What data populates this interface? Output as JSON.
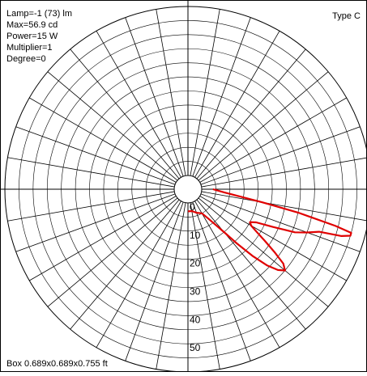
{
  "info": {
    "lamp": "Lamp=-1 (73) lm",
    "max": "Max=56.9 cd",
    "power": "Power=15 W",
    "multiplier": "Multiplier=1",
    "degree": "Degree=0"
  },
  "type_label": "Type C",
  "box_label": "Box 0.689x0.689x0.755 ft",
  "chart_data": {
    "type": "polar",
    "title": "",
    "radial_unit": "cd",
    "radial_max": 60,
    "ring_step": 5,
    "radial_ticks": [
      "0",
      "10",
      "20",
      "30",
      "40",
      "50"
    ],
    "spoke_step_deg": 10,
    "grid": true,
    "colors": {
      "curve": "#e00000",
      "grid": "#000000"
    },
    "series": [
      {
        "angle_deg": [
          0,
          5,
          10,
          12,
          14,
          15,
          16,
          17,
          18,
          20,
          22,
          24,
          26,
          28,
          30,
          32,
          34,
          36,
          38,
          40,
          42,
          44,
          46,
          48,
          50,
          55,
          60,
          70,
          80,
          90
        ],
        "values": [
          4,
          8,
          22,
          35,
          49,
          55,
          55,
          52,
          44,
          40,
          36,
          28,
          22,
          20,
          21,
          24,
          28,
          33,
          38,
          40,
          38,
          34,
          28,
          21,
          15,
          8,
          5,
          4,
          3,
          3
        ]
      }
    ]
  }
}
